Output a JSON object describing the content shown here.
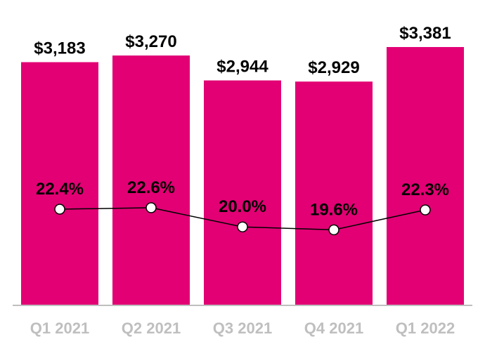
{
  "chart_data": {
    "type": "bar",
    "categories": [
      "Q1 2021",
      "Q2 2021",
      "Q3 2021",
      "Q4 2021",
      "Q1 2022"
    ],
    "value_labels": [
      "$3,183",
      "$3,270",
      "$2,944",
      "$2,929",
      "$3,381"
    ],
    "series": [
      {
        "type": "bar",
        "values": [
          3183,
          3270,
          2944,
          2929,
          3381
        ]
      },
      {
        "type": "line",
        "values": [
          22.4,
          22.6,
          20.0,
          19.6,
          22.3
        ],
        "labels": [
          "22.4%",
          "22.6%",
          "20.0%",
          "19.6%",
          "22.3%"
        ]
      }
    ],
    "ylim": [
      0,
      3381
    ],
    "grid": false,
    "legend": "none",
    "colors": {
      "bar": "#e20074",
      "line": "#000000",
      "marker_fill": "#ffffff",
      "axis": "#bfbfbf",
      "tick_text": "#bfbfbf"
    }
  }
}
